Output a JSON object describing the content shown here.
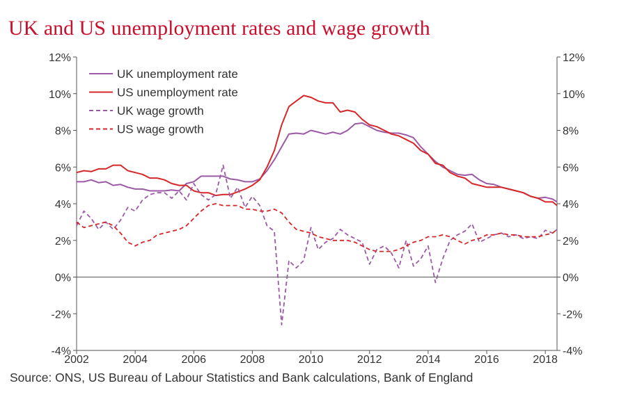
{
  "title": "UK and US unemployment rates and wage growth",
  "source": "Source: ONS, US Bureau of Labour Statistics and Bank calculations, Bank of England",
  "chart_data": {
    "type": "line",
    "title": "UK and US unemployment rates and wage growth",
    "xlabel": "",
    "ylabel": "",
    "xlim": [
      2002,
      2018.4
    ],
    "ylim": [
      -4,
      12
    ],
    "x_ticks": [
      "2002",
      "2004",
      "2006",
      "2008",
      "2010",
      "2012",
      "2014",
      "2016",
      "2018"
    ],
    "x_tick_values": [
      2002,
      2004,
      2006,
      2008,
      2010,
      2012,
      2014,
      2016,
      2018
    ],
    "y_ticks_left": [
      "12%",
      "10%",
      "8%",
      "6%",
      "4%",
      "2%",
      "0%",
      "-2%",
      "-4%"
    ],
    "y_ticks_right": [
      "12%",
      "10%",
      "8%",
      "6%",
      "4%",
      "2%",
      "0%",
      "-2%",
      "-4%"
    ],
    "y_tick_values": [
      12,
      10,
      8,
      6,
      4,
      2,
      0,
      -2,
      -4
    ],
    "grid": false,
    "zero_line": true,
    "legend_position": "top-left",
    "series": [
      {
        "name": "UK unemployment rate",
        "color": "#9b59a6",
        "dash": "solid",
        "x": [
          2002.0,
          2002.25,
          2002.5,
          2002.75,
          2003.0,
          2003.25,
          2003.5,
          2003.75,
          2004.0,
          2004.25,
          2004.5,
          2004.75,
          2005.0,
          2005.25,
          2005.5,
          2005.75,
          2006.0,
          2006.25,
          2006.5,
          2006.75,
          2007.0,
          2007.25,
          2007.5,
          2007.75,
          2008.0,
          2008.25,
          2008.5,
          2008.75,
          2009.0,
          2009.25,
          2009.5,
          2009.75,
          2010.0,
          2010.25,
          2010.5,
          2010.75,
          2011.0,
          2011.25,
          2011.5,
          2011.75,
          2012.0,
          2012.25,
          2012.5,
          2012.75,
          2013.0,
          2013.25,
          2013.5,
          2013.75,
          2014.0,
          2014.25,
          2014.5,
          2014.75,
          2015.0,
          2015.25,
          2015.5,
          2015.75,
          2016.0,
          2016.25,
          2016.5,
          2016.75,
          2017.0,
          2017.25,
          2017.5,
          2017.75,
          2018.0,
          2018.25,
          2018.4
        ],
        "values": [
          5.2,
          5.2,
          5.3,
          5.15,
          5.2,
          5.0,
          5.05,
          4.9,
          4.8,
          4.8,
          4.7,
          4.7,
          4.7,
          4.75,
          4.7,
          5.1,
          5.2,
          5.5,
          5.5,
          5.5,
          5.5,
          5.35,
          5.3,
          5.2,
          5.2,
          5.35,
          5.8,
          6.4,
          7.1,
          7.8,
          7.85,
          7.8,
          8.0,
          7.9,
          7.8,
          7.9,
          7.8,
          8.0,
          8.35,
          8.4,
          8.2,
          8.0,
          7.9,
          7.85,
          7.85,
          7.75,
          7.6,
          7.1,
          6.7,
          6.3,
          6.0,
          5.8,
          5.6,
          5.55,
          5.6,
          5.3,
          5.1,
          5.05,
          4.9,
          4.8,
          4.7,
          4.6,
          4.4,
          4.3,
          4.35,
          4.25,
          4.1
        ]
      },
      {
        "name": "US unemployment rate",
        "color": "#d62728",
        "dash": "solid",
        "x": [
          2002.0,
          2002.25,
          2002.5,
          2002.75,
          2003.0,
          2003.25,
          2003.5,
          2003.75,
          2004.0,
          2004.25,
          2004.5,
          2004.75,
          2005.0,
          2005.25,
          2005.5,
          2005.75,
          2006.0,
          2006.25,
          2006.5,
          2006.75,
          2007.0,
          2007.25,
          2007.5,
          2007.75,
          2008.0,
          2008.25,
          2008.5,
          2008.75,
          2009.0,
          2009.25,
          2009.5,
          2009.75,
          2010.0,
          2010.25,
          2010.5,
          2010.75,
          2011.0,
          2011.25,
          2011.5,
          2011.75,
          2012.0,
          2012.25,
          2012.5,
          2012.75,
          2013.0,
          2013.25,
          2013.5,
          2013.75,
          2014.0,
          2014.25,
          2014.5,
          2014.75,
          2015.0,
          2015.25,
          2015.5,
          2015.75,
          2016.0,
          2016.25,
          2016.5,
          2016.75,
          2017.0,
          2017.25,
          2017.5,
          2017.75,
          2018.0,
          2018.25,
          2018.4
        ],
        "values": [
          5.7,
          5.8,
          5.75,
          5.9,
          5.9,
          6.1,
          6.1,
          5.8,
          5.7,
          5.6,
          5.4,
          5.4,
          5.3,
          5.1,
          5.0,
          5.0,
          4.7,
          4.6,
          4.6,
          4.45,
          4.5,
          4.5,
          4.65,
          4.8,
          5.0,
          5.3,
          6.0,
          6.9,
          8.3,
          9.3,
          9.6,
          9.9,
          9.8,
          9.6,
          9.5,
          9.5,
          9.0,
          9.1,
          9.0,
          8.6,
          8.3,
          8.2,
          8.0,
          7.8,
          7.7,
          7.5,
          7.3,
          6.9,
          6.7,
          6.2,
          6.1,
          5.7,
          5.5,
          5.4,
          5.1,
          5.0,
          4.9,
          4.9,
          4.9,
          4.8,
          4.7,
          4.6,
          4.4,
          4.3,
          4.1,
          4.1,
          3.9
        ]
      },
      {
        "name": "UK wage growth",
        "color": "#9b59a6",
        "dash": "dashed",
        "x": [
          2002.0,
          2002.25,
          2002.5,
          2002.75,
          2003.0,
          2003.25,
          2003.5,
          2003.75,
          2004.0,
          2004.25,
          2004.5,
          2004.75,
          2005.0,
          2005.25,
          2005.5,
          2005.75,
          2006.0,
          2006.25,
          2006.5,
          2006.75,
          2007.0,
          2007.25,
          2007.5,
          2007.75,
          2008.0,
          2008.25,
          2008.5,
          2008.75,
          2009.0,
          2009.25,
          2009.5,
          2009.75,
          2010.0,
          2010.25,
          2010.5,
          2010.75,
          2011.0,
          2011.25,
          2011.5,
          2011.75,
          2012.0,
          2012.25,
          2012.5,
          2012.75,
          2013.0,
          2013.25,
          2013.5,
          2013.75,
          2014.0,
          2014.25,
          2014.5,
          2014.75,
          2015.0,
          2015.25,
          2015.5,
          2015.75,
          2016.0,
          2016.25,
          2016.5,
          2016.75,
          2017.0,
          2017.25,
          2017.5,
          2017.75,
          2018.0,
          2018.25,
          2018.4
        ],
        "values": [
          2.8,
          3.6,
          3.2,
          2.6,
          3.0,
          2.6,
          3.1,
          3.8,
          3.6,
          4.2,
          4.5,
          4.6,
          4.6,
          4.3,
          4.7,
          4.2,
          5.1,
          4.5,
          4.2,
          4.5,
          6.1,
          4.3,
          4.9,
          3.8,
          4.4,
          3.9,
          2.8,
          2.5,
          -2.6,
          0.9,
          0.5,
          0.9,
          2.7,
          1.5,
          1.9,
          2.1,
          2.6,
          2.3,
          2.1,
          1.9,
          0.7,
          1.5,
          1.7,
          1.3,
          0.5,
          2.0,
          0.6,
          1.0,
          1.7,
          -0.3,
          1.0,
          2.0,
          2.3,
          2.5,
          2.9,
          1.9,
          2.1,
          2.3,
          2.4,
          2.2,
          2.3,
          2.1,
          2.2,
          2.1,
          2.55,
          2.4,
          2.6
        ]
      },
      {
        "name": "US wage growth",
        "color": "#d62728",
        "dash": "dashed",
        "x": [
          2002.0,
          2002.25,
          2002.5,
          2002.75,
          2003.0,
          2003.25,
          2003.5,
          2003.75,
          2004.0,
          2004.25,
          2004.5,
          2004.75,
          2005.0,
          2005.25,
          2005.5,
          2005.75,
          2006.0,
          2006.25,
          2006.5,
          2006.75,
          2007.0,
          2007.25,
          2007.5,
          2007.75,
          2008.0,
          2008.25,
          2008.5,
          2008.75,
          2009.0,
          2009.25,
          2009.5,
          2009.75,
          2010.0,
          2010.25,
          2010.5,
          2010.75,
          2011.0,
          2011.25,
          2011.5,
          2011.75,
          2012.0,
          2012.25,
          2012.5,
          2012.75,
          2013.0,
          2013.25,
          2013.5,
          2013.75,
          2014.0,
          2014.25,
          2014.5,
          2014.75,
          2015.0,
          2015.25,
          2015.5,
          2015.75,
          2016.0,
          2016.25,
          2016.5,
          2016.75,
          2017.0,
          2017.25,
          2017.5,
          2017.75,
          2018.0,
          2018.25,
          2018.4
        ],
        "values": [
          3.0,
          2.7,
          2.8,
          2.9,
          3.0,
          2.8,
          2.4,
          1.9,
          1.7,
          1.9,
          2.0,
          2.3,
          2.4,
          2.5,
          2.6,
          2.8,
          3.2,
          3.6,
          3.9,
          4.0,
          3.9,
          3.9,
          3.9,
          3.7,
          3.7,
          3.6,
          3.6,
          3.7,
          3.5,
          3.0,
          2.6,
          2.5,
          2.4,
          2.2,
          2.1,
          2.0,
          2.0,
          2.0,
          1.9,
          1.7,
          1.5,
          1.4,
          1.4,
          1.4,
          1.5,
          1.7,
          1.9,
          2.0,
          2.2,
          2.2,
          2.3,
          2.2,
          2.0,
          1.8,
          2.0,
          2.1,
          2.3,
          2.3,
          2.4,
          2.3,
          2.3,
          2.2,
          2.2,
          2.2,
          2.3,
          2.4,
          2.6
        ]
      }
    ]
  }
}
